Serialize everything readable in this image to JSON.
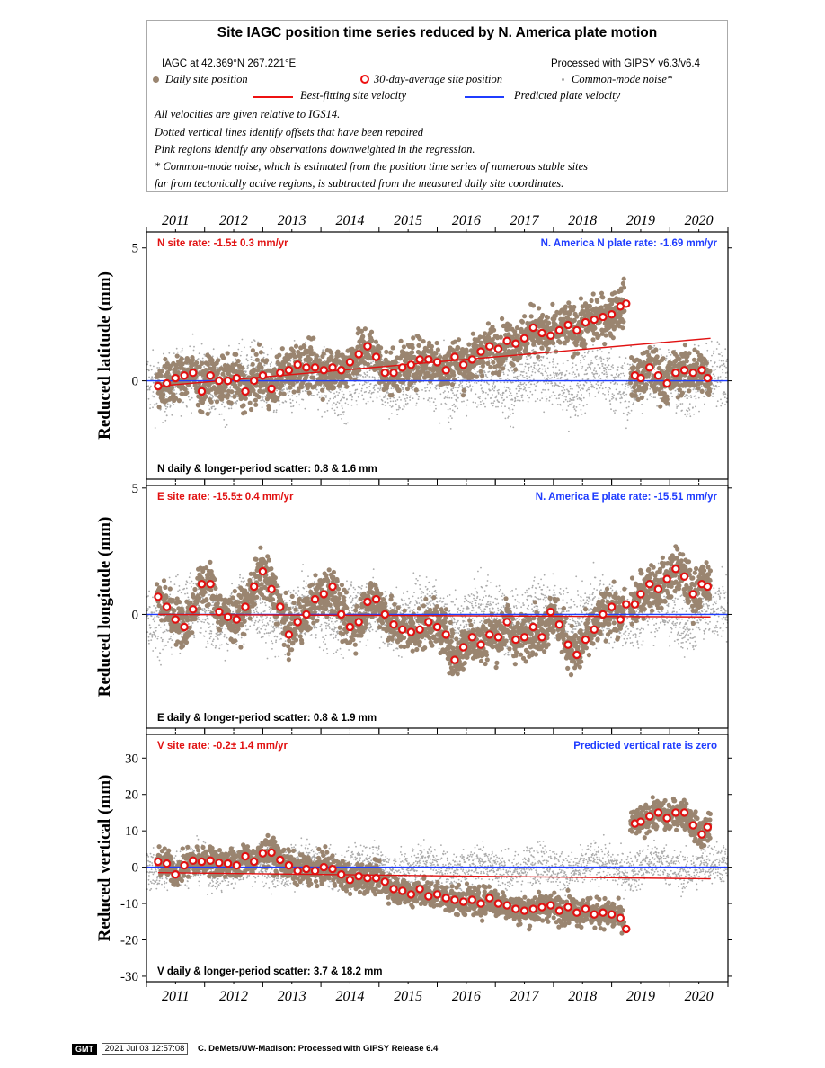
{
  "legend": {
    "title": "Site IAGC position time series reduced by N. America plate motion",
    "site_coords": "IAGC at 42.369°N 267.221°E",
    "processing": "Processed with GIPSY v6.3/v6.4",
    "daily_label": "Daily site position",
    "avg_label": "30-day-average site position",
    "cm_label": "Common-mode noise*",
    "fit_label": "Best-fitting site velocity",
    "pred_label": "Predicted plate velocity",
    "notes": [
      "All velocities are given relative to IGS14.",
      "Dotted vertical lines identify offsets that have been repaired",
      "Pink regions identify any observations downweighted in the regression.",
      "* Common-mode noise, which is estimated from the position time series of numerous stable sites",
      "far from tectonically active regions, is subtracted from the measured daily site coordinates."
    ]
  },
  "colors": {
    "daily": "#9a8570",
    "average": "#e11111",
    "common_mode": "#aaaaaa",
    "fit": "#e11111",
    "predicted": "#1f3cff"
  },
  "footer": {
    "logo": "GMT",
    "timestamp": "2021 Jul 03 12:57:08",
    "credit": "C. DeMets/UW-Madison: Processed with GIPSY Release 6.4"
  },
  "chart_data": [
    {
      "type": "scatter",
      "component": "N",
      "ylabel": "Reduced latitude (mm)",
      "xlim": [
        2010.5,
        2020.5
      ],
      "ylim": [
        -3.7,
        5.6
      ],
      "yticks": [
        0,
        5
      ],
      "xticks": [
        2011,
        2012,
        2013,
        2014,
        2015,
        2016,
        2017,
        2018,
        2019,
        2020
      ],
      "rate_label": "N site rate:  -1.5± 0.3 mm/yr",
      "plate_label": "N. America N plate rate: -1.69 mm/yr",
      "scatter_label": "N daily & longer-period scatter:   0.8 &   1.6 mm",
      "fit_line": {
        "x": [
          2010.7,
          2020.2
        ],
        "y": [
          -0.2,
          1.6
        ]
      },
      "predicted_line": {
        "x": [
          2010.5,
          2020.5
        ],
        "y": [
          0,
          0
        ]
      },
      "offset_epoch": 2018.8,
      "averages": {
        "x": [
          2010.7,
          2010.85,
          2011.0,
          2011.15,
          2011.3,
          2011.45,
          2011.6,
          2011.75,
          2011.9,
          2012.05,
          2012.2,
          2012.35,
          2012.5,
          2012.65,
          2012.8,
          2012.95,
          2013.1,
          2013.25,
          2013.4,
          2013.55,
          2013.7,
          2013.85,
          2014.0,
          2014.15,
          2014.3,
          2014.45,
          2014.6,
          2014.75,
          2014.9,
          2015.05,
          2015.2,
          2015.35,
          2015.5,
          2015.65,
          2015.8,
          2015.95,
          2016.1,
          2016.25,
          2016.4,
          2016.55,
          2016.7,
          2016.85,
          2017.0,
          2017.15,
          2017.3,
          2017.45,
          2017.6,
          2017.75,
          2017.9,
          2018.05,
          2018.2,
          2018.35,
          2018.5,
          2018.65,
          2018.75,
          2018.9,
          2019.0,
          2019.15,
          2019.3,
          2019.45,
          2019.6,
          2019.75,
          2019.9,
          2020.05,
          2020.15
        ],
        "y": [
          -0.2,
          -0.1,
          0.1,
          0.2,
          0.3,
          -0.4,
          0.2,
          0.0,
          0.0,
          0.1,
          -0.4,
          0.0,
          0.2,
          -0.3,
          0.3,
          0.4,
          0.6,
          0.5,
          0.5,
          0.4,
          0.5,
          0.4,
          0.7,
          1.0,
          1.3,
          0.9,
          0.3,
          0.3,
          0.5,
          0.6,
          0.8,
          0.8,
          0.7,
          0.4,
          0.9,
          0.6,
          0.8,
          1.1,
          1.3,
          1.2,
          1.5,
          1.4,
          1.6,
          2.0,
          1.8,
          1.7,
          1.9,
          2.1,
          1.9,
          2.2,
          2.3,
          2.4,
          2.5,
          2.8,
          2.9,
          0.2,
          0.1,
          0.5,
          0.2,
          -0.1,
          0.3,
          0.4,
          0.3,
          0.4,
          0.1
        ]
      }
    },
    {
      "type": "scatter",
      "component": "E",
      "ylabel": "Reduced longitude (mm)",
      "xlim": [
        2010.5,
        2020.5
      ],
      "ylim": [
        -4.5,
        5.1
      ],
      "yticks": [
        0,
        5
      ],
      "xticks": [
        2011,
        2012,
        2013,
        2014,
        2015,
        2016,
        2017,
        2018,
        2019,
        2020
      ],
      "rate_label": "E site rate:  -15.5± 0.4 mm/yr",
      "plate_label": "N. America E plate rate: -15.51 mm/yr",
      "scatter_label": "E daily & longer-period scatter:   0.8 &   1.9 mm",
      "fit_line": {
        "x": [
          2010.7,
          2020.2
        ],
        "y": [
          0.0,
          -0.1
        ]
      },
      "predicted_line": {
        "x": [
          2010.5,
          2020.5
        ],
        "y": [
          0,
          0
        ]
      },
      "offset_epoch": 2018.8,
      "averages": {
        "x": [
          2010.7,
          2010.85,
          2011.0,
          2011.15,
          2011.3,
          2011.45,
          2011.6,
          2011.75,
          2011.9,
          2012.05,
          2012.2,
          2012.35,
          2012.5,
          2012.65,
          2012.8,
          2012.95,
          2013.1,
          2013.25,
          2013.4,
          2013.55,
          2013.7,
          2013.85,
          2014.0,
          2014.15,
          2014.3,
          2014.45,
          2014.6,
          2014.75,
          2014.9,
          2015.05,
          2015.2,
          2015.35,
          2015.5,
          2015.65,
          2015.8,
          2015.95,
          2016.1,
          2016.25,
          2016.4,
          2016.55,
          2016.7,
          2016.85,
          2017.0,
          2017.15,
          2017.3,
          2017.45,
          2017.6,
          2017.75,
          2017.9,
          2018.05,
          2018.2,
          2018.35,
          2018.5,
          2018.65,
          2018.75,
          2018.9,
          2019.0,
          2019.15,
          2019.3,
          2019.45,
          2019.6,
          2019.75,
          2019.9,
          2020.05,
          2020.15
        ],
        "y": [
          0.7,
          0.3,
          -0.2,
          -0.5,
          0.2,
          1.2,
          1.2,
          0.1,
          -0.1,
          -0.2,
          0.3,
          1.1,
          1.7,
          1.0,
          0.3,
          -0.8,
          -0.3,
          0.0,
          0.6,
          0.8,
          1.1,
          0.0,
          -0.5,
          -0.3,
          0.5,
          0.6,
          0.0,
          -0.4,
          -0.6,
          -0.7,
          -0.6,
          -0.3,
          -0.5,
          -0.8,
          -1.8,
          -1.3,
          -0.9,
          -1.2,
          -0.8,
          -0.9,
          -0.3,
          -1.0,
          -0.9,
          -0.5,
          -0.9,
          0.1,
          -0.4,
          -1.2,
          -1.6,
          -1.0,
          -0.6,
          0.0,
          0.3,
          -0.2,
          0.4,
          0.4,
          0.8,
          1.2,
          1.0,
          1.4,
          1.8,
          1.5,
          0.8,
          1.2,
          1.1
        ]
      }
    },
    {
      "type": "scatter",
      "component": "V",
      "ylabel": "Reduced vertical (mm)",
      "xlim": [
        2010.5,
        2020.5
      ],
      "ylim": [
        -31.5,
        36.5
      ],
      "yticks": [
        -30,
        -20,
        -10,
        0,
        10,
        20,
        30
      ],
      "xticks": [
        2011,
        2012,
        2013,
        2014,
        2015,
        2016,
        2017,
        2018,
        2019,
        2020
      ],
      "rate_label": "V site rate:  -0.2± 1.4 mm/yr",
      "plate_label": "Predicted vertical rate is zero",
      "scatter_label": "V daily & longer-period scatter:   3.7 &  18.2 mm",
      "fit_line": {
        "x": [
          2010.7,
          2020.2
        ],
        "y": [
          -1.5,
          -3.2
        ]
      },
      "predicted_line": {
        "x": [
          2010.5,
          2020.5
        ],
        "y": [
          0,
          0
        ]
      },
      "offset_epoch": 2018.8,
      "averages": {
        "x": [
          2010.7,
          2010.85,
          2011.0,
          2011.15,
          2011.3,
          2011.45,
          2011.6,
          2011.75,
          2011.9,
          2012.05,
          2012.2,
          2012.35,
          2012.5,
          2012.65,
          2012.8,
          2012.95,
          2013.1,
          2013.25,
          2013.4,
          2013.55,
          2013.7,
          2013.85,
          2014.0,
          2014.15,
          2014.3,
          2014.45,
          2014.6,
          2014.75,
          2014.9,
          2015.05,
          2015.2,
          2015.35,
          2015.5,
          2015.65,
          2015.8,
          2015.95,
          2016.1,
          2016.25,
          2016.4,
          2016.55,
          2016.7,
          2016.85,
          2017.0,
          2017.15,
          2017.3,
          2017.45,
          2017.6,
          2017.75,
          2017.9,
          2018.05,
          2018.2,
          2018.35,
          2018.5,
          2018.65,
          2018.75,
          2018.9,
          2019.0,
          2019.15,
          2019.3,
          2019.45,
          2019.6,
          2019.75,
          2019.9,
          2020.05,
          2020.15
        ],
        "y": [
          1.5,
          1.0,
          -2.0,
          0.5,
          1.8,
          1.5,
          1.8,
          1.2,
          1.0,
          0.5,
          3.0,
          1.5,
          3.8,
          4.0,
          2.0,
          0.5,
          -1.0,
          -0.5,
          -1.0,
          0.0,
          -0.5,
          -2.0,
          -3.5,
          -2.5,
          -3.0,
          -3.0,
          -4.0,
          -6.0,
          -6.5,
          -7.5,
          -6.0,
          -8.0,
          -7.5,
          -8.5,
          -9.0,
          -9.5,
          -9.0,
          -10.0,
          -8.5,
          -10.0,
          -10.5,
          -11.5,
          -12.0,
          -11.5,
          -11.0,
          -10.5,
          -12.0,
          -11.0,
          -12.5,
          -11.5,
          -13.0,
          -12.5,
          -13.0,
          -14.0,
          -17.0,
          12.0,
          12.5,
          14.0,
          15.0,
          13.5,
          15.0,
          15.0,
          11.5,
          9.0,
          11.0
        ]
      }
    }
  ]
}
